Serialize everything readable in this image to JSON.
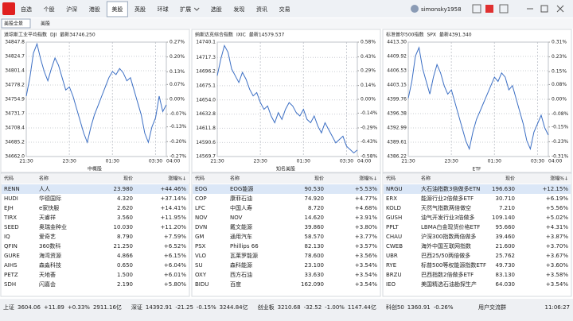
{
  "nav": {
    "tabs": [
      "自选",
      "个股",
      "沪深",
      "港股",
      "美股",
      "英股",
      "环球",
      "扩展",
      "选股",
      "发现",
      "资讯",
      "交易"
    ],
    "active_index": 4,
    "user": "simonsky1958"
  },
  "subtabs": {
    "items": [
      "美股全景",
      "美股"
    ],
    "active_index": 0
  },
  "charts": [
    {
      "type": "line",
      "title": "道琼斯工业平均指数",
      "code": "DJI",
      "latest": "最新34746.250",
      "caption": "中概股",
      "color": "#3c6fc4",
      "values": [
        34760,
        34790,
        34830,
        34845,
        34820,
        34800,
        34785,
        34805,
        34822,
        34810,
        34790,
        34770,
        34775,
        34760,
        34740,
        34720,
        34700,
        34685,
        34710,
        34730,
        34745,
        34760,
        34775,
        34790,
        34800,
        34795,
        34805,
        34798,
        34785,
        34790,
        34770,
        34750,
        34730,
        34700,
        34685,
        34710,
        34725,
        34760,
        34735,
        34746
      ],
      "ylim": [
        34662.0,
        34847.8
      ],
      "yticks": [
        34847.8,
        34824.7,
        34801.4,
        34778.2,
        34754.9,
        34731.7,
        34708.4,
        34685.2,
        {
          "value": 34662.0,
          "label": "34662.0"
        }
      ],
      "y2lim": [
        -0.27,
        0.27
      ],
      "y2ticks": [
        {
          "value": 0.27,
          "label": "0.27%"
        },
        {
          "value": 0.2,
          "label": "0.20%"
        },
        {
          "value": 0.13,
          "label": "0.13%"
        },
        {
          "value": 0.07,
          "label": "0.07%"
        },
        {
          "value": 0,
          "label": "0.00%"
        },
        {
          "value": -0.07,
          "label": "-0.07%"
        },
        {
          "value": -0.13,
          "label": "-0.13%"
        },
        {
          "value": -0.2,
          "label": "-0.20%"
        },
        {
          "value": -0.27,
          "label": "-0.27%"
        }
      ],
      "xticks": [
        "21:30",
        "23:30",
        "01:30",
        "03:30",
        "04:00"
      ]
    },
    {
      "type": "line",
      "title": "纳斯达克综合指数",
      "code": "IXIC",
      "latest": "最新14579.537",
      "caption": "知名美股",
      "color": "#3c6fc4",
      "values": [
        14690,
        14715,
        14735,
        14725,
        14700,
        14690,
        14680,
        14695,
        14685,
        14670,
        14660,
        14665,
        14650,
        14640,
        14645,
        14630,
        14620,
        14635,
        14625,
        14640,
        14650,
        14645,
        14635,
        14630,
        14640,
        14625,
        14620,
        14630,
        14615,
        14605,
        14620,
        14610,
        14600,
        14590,
        14595,
        14600,
        14585,
        14580,
        14575,
        14579.5
      ],
      "ylim": [
        14569.7,
        14740.1
      ],
      "yticks": [
        14740.1,
        14717.3,
        14696.2,
        14675.1,
        {
          "value": 14654.0,
          "label": "14654.0"
        },
        14632.8,
        14611.8,
        14590.6,
        14569.7
      ],
      "y2lim": [
        -0.58,
        0.58
      ],
      "y2ticks": [
        {
          "value": 0.58,
          "label": "0.58%"
        },
        {
          "value": 0.43,
          "label": "0.43%"
        },
        {
          "value": 0.29,
          "label": "0.29%"
        },
        {
          "value": 0.14,
          "label": "0.14%"
        },
        {
          "value": 0,
          "label": "0.00%"
        },
        {
          "value": -0.14,
          "label": "-0.14%"
        },
        {
          "value": -0.29,
          "label": "-0.29%"
        },
        {
          "value": -0.43,
          "label": "-0.43%"
        },
        {
          "value": -0.58,
          "label": "-0.58%"
        }
      ],
      "xticks": [
        "21:30",
        "23:30",
        "01:30",
        "03:30",
        "04:00"
      ]
    },
    {
      "type": "line",
      "title": "标准普尔500指数",
      "code": "SPX",
      "latest": "最新4391.340",
      "caption": "ETF",
      "color": "#3c6fc4",
      "values": [
        4400,
        4404,
        4410,
        4412,
        4407,
        4404,
        4401,
        4405,
        4408,
        4406,
        4403,
        4401,
        4402,
        4399,
        4396,
        4393,
        4390,
        4388,
        4392,
        4395,
        4397,
        4399,
        4401,
        4403,
        4405,
        4404,
        4406,
        4405,
        4402,
        4403,
        4400,
        4397,
        4394,
        4390,
        4388,
        4392,
        4394,
        4396,
        4393,
        4391.3
      ],
      "ylim": [
        4386.22,
        4413.3
      ],
      "yticks": [
        {
          "value": 4413.3,
          "label": "4413.30"
        },
        4409.92,
        4406.53,
        4403.15,
        4399.76,
        4396.38,
        4392.99,
        4389.61,
        4386.22
      ],
      "y2lim": [
        -0.31,
        0.31
      ],
      "y2ticks": [
        {
          "value": 0.31,
          "label": "0.31%"
        },
        {
          "value": 0.23,
          "label": "0.23%"
        },
        {
          "value": 0.15,
          "label": "0.15%"
        },
        {
          "value": 0.08,
          "label": "0.08%"
        },
        {
          "value": 0,
          "label": "0.00%"
        },
        {
          "value": -0.08,
          "label": "-0.08%"
        },
        {
          "value": -0.15,
          "label": "-0.15%"
        },
        {
          "value": -0.23,
          "label": "-0.23%"
        },
        {
          "value": -0.31,
          "label": "-0.31%"
        }
      ],
      "xticks": [
        "21:30",
        "23:30",
        "01:30",
        "03:30",
        "04:00"
      ]
    }
  ],
  "tables": [
    {
      "columns": [
        "代码",
        "名称",
        "现价",
        "涨幅%↓"
      ],
      "rows": [
        [
          "RENN",
          "人人",
          "23.980",
          "+44.46%"
        ],
        [
          "HUDI",
          "华德国际",
          "4.320",
          "+37.14%"
        ],
        [
          "EJH",
          "e家快服",
          "2.620",
          "+14.41%"
        ],
        [
          "TIRX",
          "天睿祥",
          "3.560",
          "+11.95%"
        ],
        [
          "SEED",
          "奥瑞金种业",
          "10.030",
          "+11.20%"
        ],
        [
          "IQ",
          "爱奇艺",
          "8.790",
          "+7.59%"
        ],
        [
          "QFIN",
          "360数科",
          "21.250",
          "+6.52%"
        ],
        [
          "GURE",
          "海湾资源",
          "4.866",
          "+6.15%"
        ],
        [
          "AIHS",
          "森淼科技",
          "0.650",
          "+6.04%"
        ],
        [
          "PETZ",
          "天地荟",
          "1.500",
          "+6.01%"
        ],
        [
          "SDH",
          "闪嘉会",
          "2.190",
          "+5.80%"
        ]
      ]
    },
    {
      "columns": [
        "代码",
        "名称",
        "现价",
        "涨幅%↓"
      ],
      "rows": [
        [
          "EOG",
          "EOG能源",
          "90.530",
          "+5.53%"
        ],
        [
          "COP",
          "康菲石油",
          "74.920",
          "+4.77%"
        ],
        [
          "LFC",
          "中国人寿",
          "8.720",
          "+4.68%"
        ],
        [
          "NOV",
          "NOV",
          "14.620",
          "+3.91%"
        ],
        [
          "DVN",
          "戴文能源",
          "39.860",
          "+3.80%"
        ],
        [
          "GM",
          "通用汽车",
          "58.570",
          "+3.77%"
        ],
        [
          "PSX",
          "Phillips 66",
          "82.130",
          "+3.57%"
        ],
        [
          "VLO",
          "瓦莱罗能源",
          "78.600",
          "+3.56%"
        ],
        [
          "SU",
          "森科能源",
          "23.100",
          "+3.54%"
        ],
        [
          "OXY",
          "西方石油",
          "33.630",
          "+3.54%"
        ],
        [
          "BIDU",
          "百度",
          "162.090",
          "+3.54%"
        ]
      ]
    },
    {
      "columns": [
        "代码",
        "名称",
        "现价",
        "涨幅%↓"
      ],
      "rows": [
        [
          "NRGU",
          "大石油指数3倍做多ETN",
          "196.630",
          "+12.15%"
        ],
        [
          "ERX",
          "能源行业2倍做多ETF",
          "30.710",
          "+6.19%"
        ],
        [
          "KOLD",
          "天然气指数两倍做空",
          "7.210",
          "+5.56%"
        ],
        [
          "GUSH",
          "油气开发行业3倍做多",
          "109.140",
          "+5.02%"
        ],
        [
          "PPLT",
          "LBMA白金现货价格ETF",
          "95.660",
          "+4.31%"
        ],
        [
          "CHAU",
          "沪深300指数两倍做多",
          "39.460",
          "+3.87%"
        ],
        [
          "CWEB",
          "海外中国互联网指数",
          "21.600",
          "+3.70%"
        ],
        [
          "UBR",
          "巴西25/50两倍做多",
          "25.762",
          "+3.67%"
        ],
        [
          "RYE",
          "标普500等权能源指数ETF",
          "49.730",
          "+3.60%"
        ],
        [
          "BRZU",
          "巴西指数2倍做多ETF",
          "83.130",
          "+3.58%"
        ],
        [
          "IEO",
          "美国精选石油勘探生产",
          "64.030",
          "+3.54%"
        ]
      ]
    }
  ],
  "status": {
    "items": [
      [
        "上证",
        "3604.06",
        "+11.89",
        "+0.33%",
        "2911.16亿"
      ],
      [
        "深证",
        "14392.91",
        "-21.25",
        "-0.15%",
        "3244.84亿"
      ],
      [
        "创业板",
        "3210.68",
        "-32.52",
        "-1.00%",
        "1147.44亿"
      ],
      [
        "科创50",
        "1360.91",
        "-0.26%"
      ]
    ],
    "link": "用户交流群",
    "time": "11:06:27"
  }
}
